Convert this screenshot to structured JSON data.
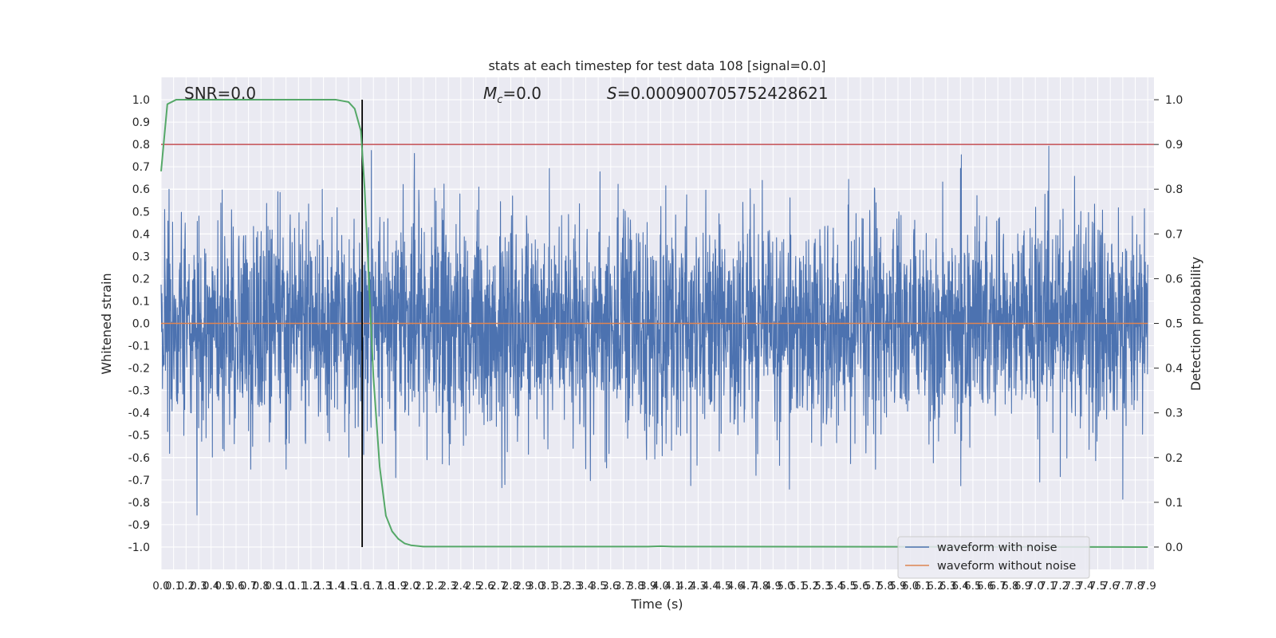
{
  "chart_data": {
    "type": "line",
    "title": "stats at each timestep for test data 108 [signal=0.0]",
    "xlabel": "Time (s)",
    "ylabel": "Whitened strain",
    "y2label": "Detection probability",
    "xlim": [
      0.0,
      7.95
    ],
    "ylim": [
      -1.1,
      1.1
    ],
    "y2lim": [
      -0.05,
      1.05
    ],
    "x_ticks": [
      "0.0",
      "0.1",
      "0.2",
      "0.3",
      "0.4",
      "0.5",
      "0.6",
      "0.7",
      "0.8",
      "0.9",
      "1.0",
      "1.1",
      "1.2",
      "1.3",
      "1.4",
      "1.5",
      "1.6",
      "1.7",
      "1.8",
      "1.9",
      "2.0",
      "2.1",
      "2.2",
      "2.3",
      "2.4",
      "2.5",
      "2.6",
      "2.7",
      "2.8",
      "2.9",
      "3.0",
      "3.1",
      "3.2",
      "3.3",
      "3.4",
      "3.5",
      "3.6",
      "3.7",
      "3.8",
      "3.9",
      "4.0",
      "4.1",
      "4.2",
      "4.3",
      "4.4",
      "4.5",
      "4.6",
      "4.7",
      "4.8",
      "4.9",
      "5.0",
      "5.1",
      "5.2",
      "5.3",
      "5.4",
      "5.5",
      "5.6",
      "5.7",
      "5.8",
      "5.9",
      "6.0",
      "6.1",
      "6.2",
      "6.3",
      "6.4",
      "6.5",
      "6.6",
      "6.7",
      "6.8",
      "6.9",
      "7.0",
      "7.1",
      "7.2",
      "7.3",
      "7.4",
      "7.5",
      "7.6",
      "7.7",
      "7.8",
      "7.9"
    ],
    "y_ticks": [
      "1.0",
      "0.9",
      "0.8",
      "0.7",
      "0.6",
      "0.5",
      "0.4",
      "0.3",
      "0.2",
      "0.1",
      "0.0",
      "-0.1",
      "-0.2",
      "-0.3",
      "-0.4",
      "-0.5",
      "-0.6",
      "-0.7",
      "-0.8",
      "-0.9",
      "-1.0"
    ],
    "y2_ticks": [
      "1.0",
      "0.9",
      "0.8",
      "0.7",
      "0.6",
      "0.5",
      "0.4",
      "0.3",
      "0.2",
      "0.1",
      "0.0"
    ],
    "annotations": {
      "snr": "SNR=0.0",
      "mc_symbol": "M",
      "mc_sub": "c",
      "mc_value": "=0.0",
      "s_symbol": "S",
      "s_value": "=0.000900705752428621"
    },
    "threshold_y2": 0.9,
    "vline_x": 1.61,
    "series": [
      {
        "name": "waveform with noise",
        "color": "#4c72b0",
        "noise_seed": 108,
        "peak_max": 1.0,
        "peak_min": -0.98
      },
      {
        "name": "waveform without noise",
        "color": "#dd8452",
        "values": [
          0.0
        ]
      },
      {
        "color": "#55a868",
        "x": [
          0.0,
          0.05,
          0.12,
          0.3,
          0.6,
          1.0,
          1.4,
          1.5,
          1.55,
          1.6,
          1.63,
          1.66,
          1.7,
          1.75,
          1.8,
          1.85,
          1.9,
          1.95,
          2.0,
          2.1,
          3.9,
          4.0,
          4.1,
          7.9
        ],
        "y": [
          0.84,
          0.99,
          1.0,
          1.0,
          1.0,
          1.0,
          1.0,
          0.995,
          0.98,
          0.93,
          0.8,
          0.62,
          0.38,
          0.18,
          0.07,
          0.035,
          0.018,
          0.008,
          0.004,
          0.001,
          0.001,
          0.002,
          0.001,
          0.0
        ]
      }
    ],
    "legend": "lower-right",
    "grid": true,
    "colors": {
      "background": "#eaeaf2",
      "grid": "#ffffff",
      "threshold": "#c44e52",
      "vline": "#000000",
      "legend_border": "#cccccc"
    }
  }
}
